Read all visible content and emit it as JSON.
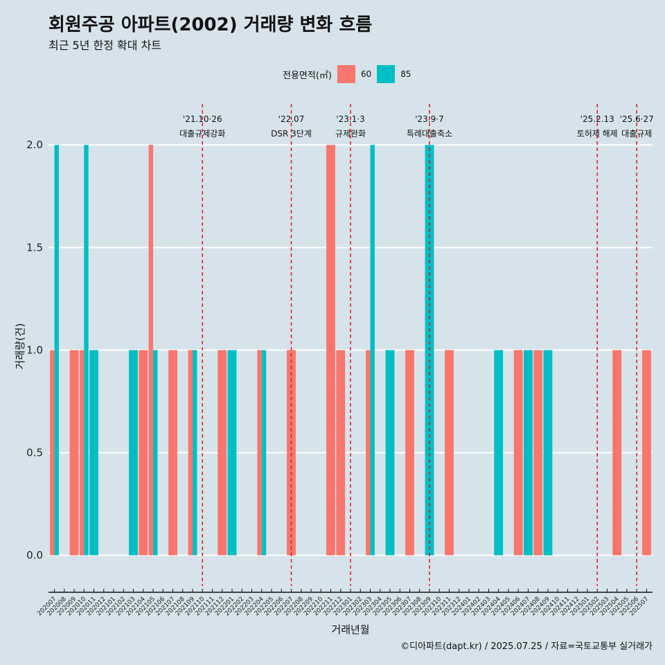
{
  "title": "회원주공 아파트(2002) 거래량 변화 흐름",
  "subtitle": "최근 5년 한정 확대 차트",
  "caption": "©디아파트(dapt.kr) / 2025.07.25 / 자료=국토교통부 실거래가",
  "legend": {
    "title": "전용면적(㎡)",
    "items": [
      {
        "label": "60",
        "color": "#f8766d"
      },
      {
        "label": "85",
        "color": "#00bfc4"
      }
    ]
  },
  "chart_data": {
    "type": "bar",
    "title": "회원주공 아파트(2002) 거래량 변화 흐름",
    "xlabel": "거래년월",
    "ylabel": "거래량(건)",
    "ylim": [
      -0.15,
      2.2
    ],
    "yticks": [
      0.0,
      0.5,
      1.0,
      1.5,
      2.0
    ],
    "ytick_labels": [
      "0.0",
      "0.5",
      "1.0",
      "1.5",
      "2.0"
    ],
    "categories": [
      "202007",
      "202008",
      "202009",
      "202010",
      "202011",
      "202012",
      "202101",
      "202102",
      "202103",
      "202104",
      "202105",
      "202106",
      "202107",
      "202108",
      "202109",
      "202110",
      "202111",
      "202112",
      "202201",
      "202202",
      "202203",
      "202204",
      "202205",
      "202206",
      "202207",
      "202208",
      "202209",
      "202210",
      "202211",
      "202212",
      "202301",
      "202302",
      "202303",
      "202304",
      "202305",
      "202306",
      "202307",
      "202308",
      "202309",
      "202310",
      "202311",
      "202312",
      "202401",
      "202402",
      "202403",
      "202404",
      "202405",
      "202406",
      "202407",
      "202408",
      "202409",
      "202410",
      "202411",
      "202412",
      "202501",
      "202502",
      "202503",
      "202504",
      "202505",
      "202506",
      "202507"
    ],
    "series": [
      {
        "name": "60",
        "color": "#f8766d",
        "values": [
          1,
          0,
          1,
          1,
          0,
          0,
          0,
          0,
          0,
          1,
          2,
          0,
          1,
          0,
          1,
          0,
          0,
          1,
          0,
          0,
          0,
          1,
          0,
          0,
          1,
          0,
          0,
          0,
          2,
          1,
          0,
          0,
          1,
          0,
          0,
          0,
          1,
          0,
          0,
          0,
          1,
          0,
          0,
          0,
          0,
          0,
          0,
          1,
          0,
          1,
          0,
          0,
          0,
          0,
          0,
          0,
          0,
          1,
          0,
          0,
          1
        ]
      },
      {
        "name": "85",
        "color": "#00bfc4",
        "values": [
          2,
          0,
          0,
          2,
          1,
          0,
          0,
          0,
          1,
          0,
          1,
          0,
          0,
          0,
          1,
          0,
          0,
          0,
          1,
          0,
          0,
          1,
          0,
          0,
          0,
          0,
          0,
          0,
          0,
          0,
          0,
          0,
          2,
          0,
          1,
          0,
          0,
          0,
          2,
          0,
          0,
          0,
          0,
          0,
          0,
          1,
          0,
          0,
          1,
          0,
          1,
          0,
          0,
          0,
          0,
          0,
          0,
          0,
          0,
          0,
          0
        ]
      }
    ],
    "events": [
      {
        "month": "202110",
        "line1": "'21.10·26",
        "line2": "대출규제강화",
        "color": "#e8141c"
      },
      {
        "month": "202207",
        "line1": "'22.07",
        "line2": "DSR 3단계",
        "color": "#e8141c"
      },
      {
        "month": "202301",
        "line1": "'23.1·3",
        "line2": "규제완화",
        "color": "#e8141c"
      },
      {
        "month": "202309",
        "line1": "'23.9·7",
        "line2": "특례대출축소",
        "color": "#e8141c"
      },
      {
        "month": "202502",
        "line1": "'25.2.13",
        "line2": "토허제 해제",
        "color": "#e8141c"
      },
      {
        "month": "202506",
        "line1": "'25.6·27",
        "line2": "대출규제",
        "color": "#e8141c"
      }
    ]
  }
}
